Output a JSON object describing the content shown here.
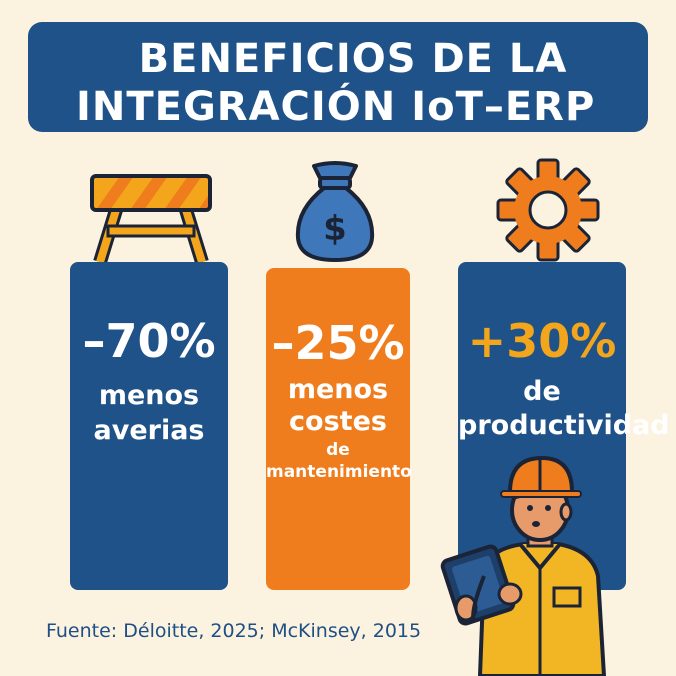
{
  "title": {
    "line1": "BENEFICIOS DE LA",
    "line2": "INTEGRACIÓN IoT–ERP"
  },
  "colors": {
    "navy": "#1e5288",
    "orange": "#ef7d1d",
    "yellow": "#f3a51c",
    "cream": "#fbf3df"
  },
  "icons": [
    "road-barrier-icon",
    "money-bag-icon",
    "gear-icon",
    "worker-with-tablet"
  ],
  "benefits": [
    {
      "value": "–70%",
      "desc_lines": [
        "menos",
        "averias"
      ]
    },
    {
      "value": "–25%",
      "desc_lines": [
        "menos",
        "costes",
        "de",
        "mantenimiento"
      ]
    },
    {
      "value": "+30%",
      "desc_lines": [
        "de",
        "productividad"
      ]
    }
  ],
  "bag_symbol": "$",
  "source": "Fuente: Déloitte, 2025; McKinsey, 2015"
}
